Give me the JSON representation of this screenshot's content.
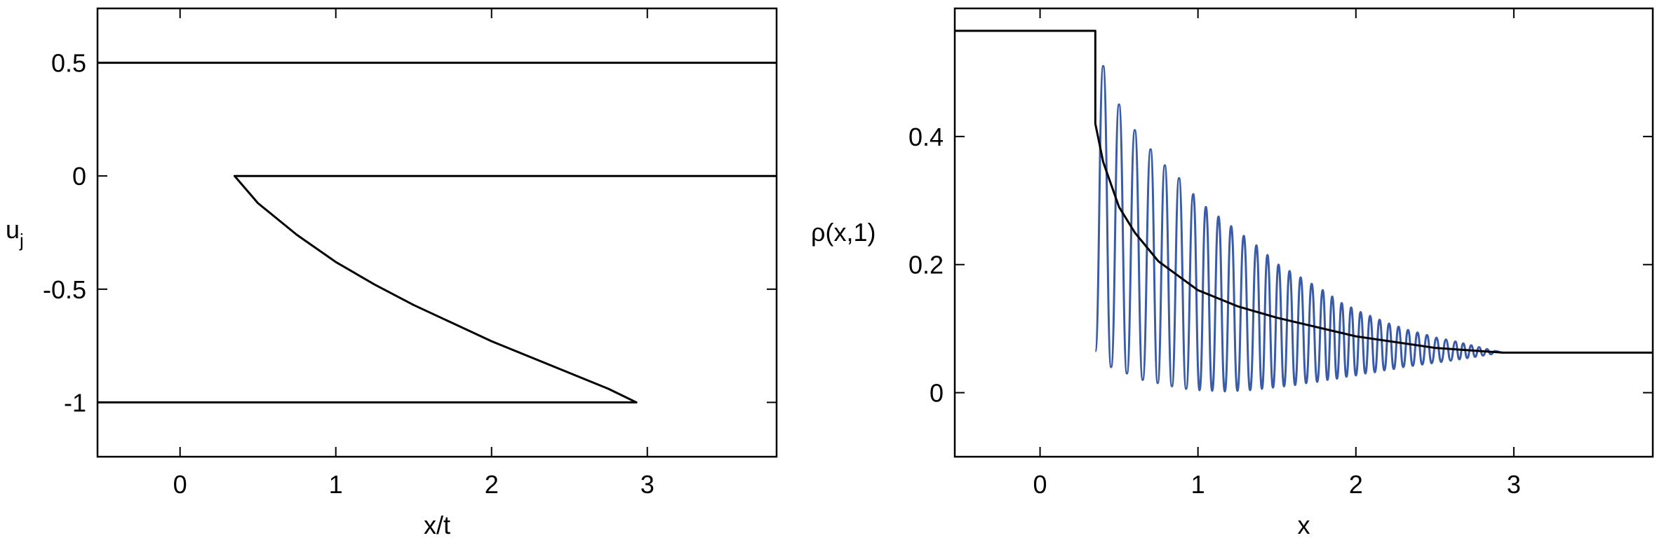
{
  "chart_data": [
    {
      "type": "line",
      "xlabel": "x/t",
      "ylabel": "u",
      "ylabel_sub": "j",
      "xlim": [
        -0.53,
        3.83
      ],
      "ylim": [
        -1.24,
        0.74
      ],
      "xticks": [
        0,
        1,
        2,
        3
      ],
      "yticks": [
        0.5,
        0,
        -0.5,
        -1
      ],
      "series": [
        {
          "color": "#000000",
          "x": [
            -0.53,
            3.83
          ],
          "values": [
            0.5,
            0.5
          ]
        },
        {
          "color": "#000000",
          "x": [
            3.83,
            0.35,
            0.5,
            0.75,
            1,
            1.25,
            1.5,
            1.75,
            2,
            2.25,
            2.5,
            2.75,
            2.93,
            -0.53
          ],
          "values": [
            0,
            0,
            -0.12,
            -0.26,
            -0.38,
            -0.48,
            -0.57,
            -0.65,
            -0.73,
            -0.8,
            -0.87,
            -0.94,
            -1,
            -1
          ]
        }
      ]
    },
    {
      "type": "line",
      "xlabel": "x",
      "ylabel": "ρ(x,1)",
      "xlim": [
        -0.54,
        3.88
      ],
      "ylim": [
        -0.1,
        0.6
      ],
      "xticks": [
        0,
        1,
        2,
        3
      ],
      "yticks": [
        0,
        0.2,
        0.4
      ],
      "series": [
        {
          "color": "#3a5ba8",
          "interpolation": "smooth",
          "x": [
            0.35,
            0.4,
            0.45,
            0.5,
            0.55,
            0.6,
            0.65,
            0.7,
            0.745,
            0.79,
            0.835,
            0.88,
            0.925,
            0.97,
            1.01,
            1.05,
            1.09,
            1.13,
            1.17,
            1.21,
            1.25,
            1.29,
            1.33,
            1.37,
            1.405,
            1.44,
            1.475,
            1.51,
            1.545,
            1.58,
            1.615,
            1.65,
            1.685,
            1.72,
            1.755,
            1.79,
            1.82,
            1.85,
            1.88,
            1.91,
            1.94,
            1.97,
            2.0,
            2.03,
            2.06,
            2.09,
            2.12,
            2.15,
            2.18,
            2.21,
            2.24,
            2.27,
            2.3,
            2.33,
            2.36,
            2.39,
            2.42,
            2.45,
            2.48,
            2.51,
            2.54,
            2.57,
            2.6,
            2.63,
            2.655,
            2.68,
            2.705,
            2.73,
            2.755,
            2.78,
            2.805,
            2.83,
            2.855,
            2.88,
            2.93
          ],
          "values": [
            0.065,
            0.51,
            0.04,
            0.45,
            0.03,
            0.41,
            0.02,
            0.38,
            0.015,
            0.355,
            0.01,
            0.335,
            0.006,
            0.31,
            0.004,
            0.29,
            0.003,
            0.275,
            0.002,
            0.26,
            0.003,
            0.245,
            0.004,
            0.23,
            0.006,
            0.215,
            0.008,
            0.2,
            0.01,
            0.19,
            0.012,
            0.18,
            0.015,
            0.17,
            0.017,
            0.16,
            0.02,
            0.15,
            0.022,
            0.14,
            0.025,
            0.133,
            0.027,
            0.126,
            0.03,
            0.12,
            0.032,
            0.114,
            0.035,
            0.108,
            0.037,
            0.103,
            0.04,
            0.098,
            0.042,
            0.094,
            0.044,
            0.09,
            0.046,
            0.086,
            0.048,
            0.083,
            0.05,
            0.08,
            0.052,
            0.077,
            0.054,
            0.074,
            0.056,
            0.071,
            0.058,
            0.068,
            0.06,
            0.065,
            0.0625
          ]
        },
        {
          "color": "#000000",
          "x": [
            -0.54,
            0.35,
            0.35,
            0.4,
            0.5,
            0.6,
            0.75,
            1.0,
            1.25,
            1.5,
            2.0,
            2.5,
            2.93,
            3.88
          ],
          "values": [
            0.565,
            0.565,
            0.42,
            0.36,
            0.29,
            0.25,
            0.205,
            0.16,
            0.135,
            0.117,
            0.088,
            0.07,
            0.0625,
            0.0625
          ]
        }
      ]
    }
  ]
}
